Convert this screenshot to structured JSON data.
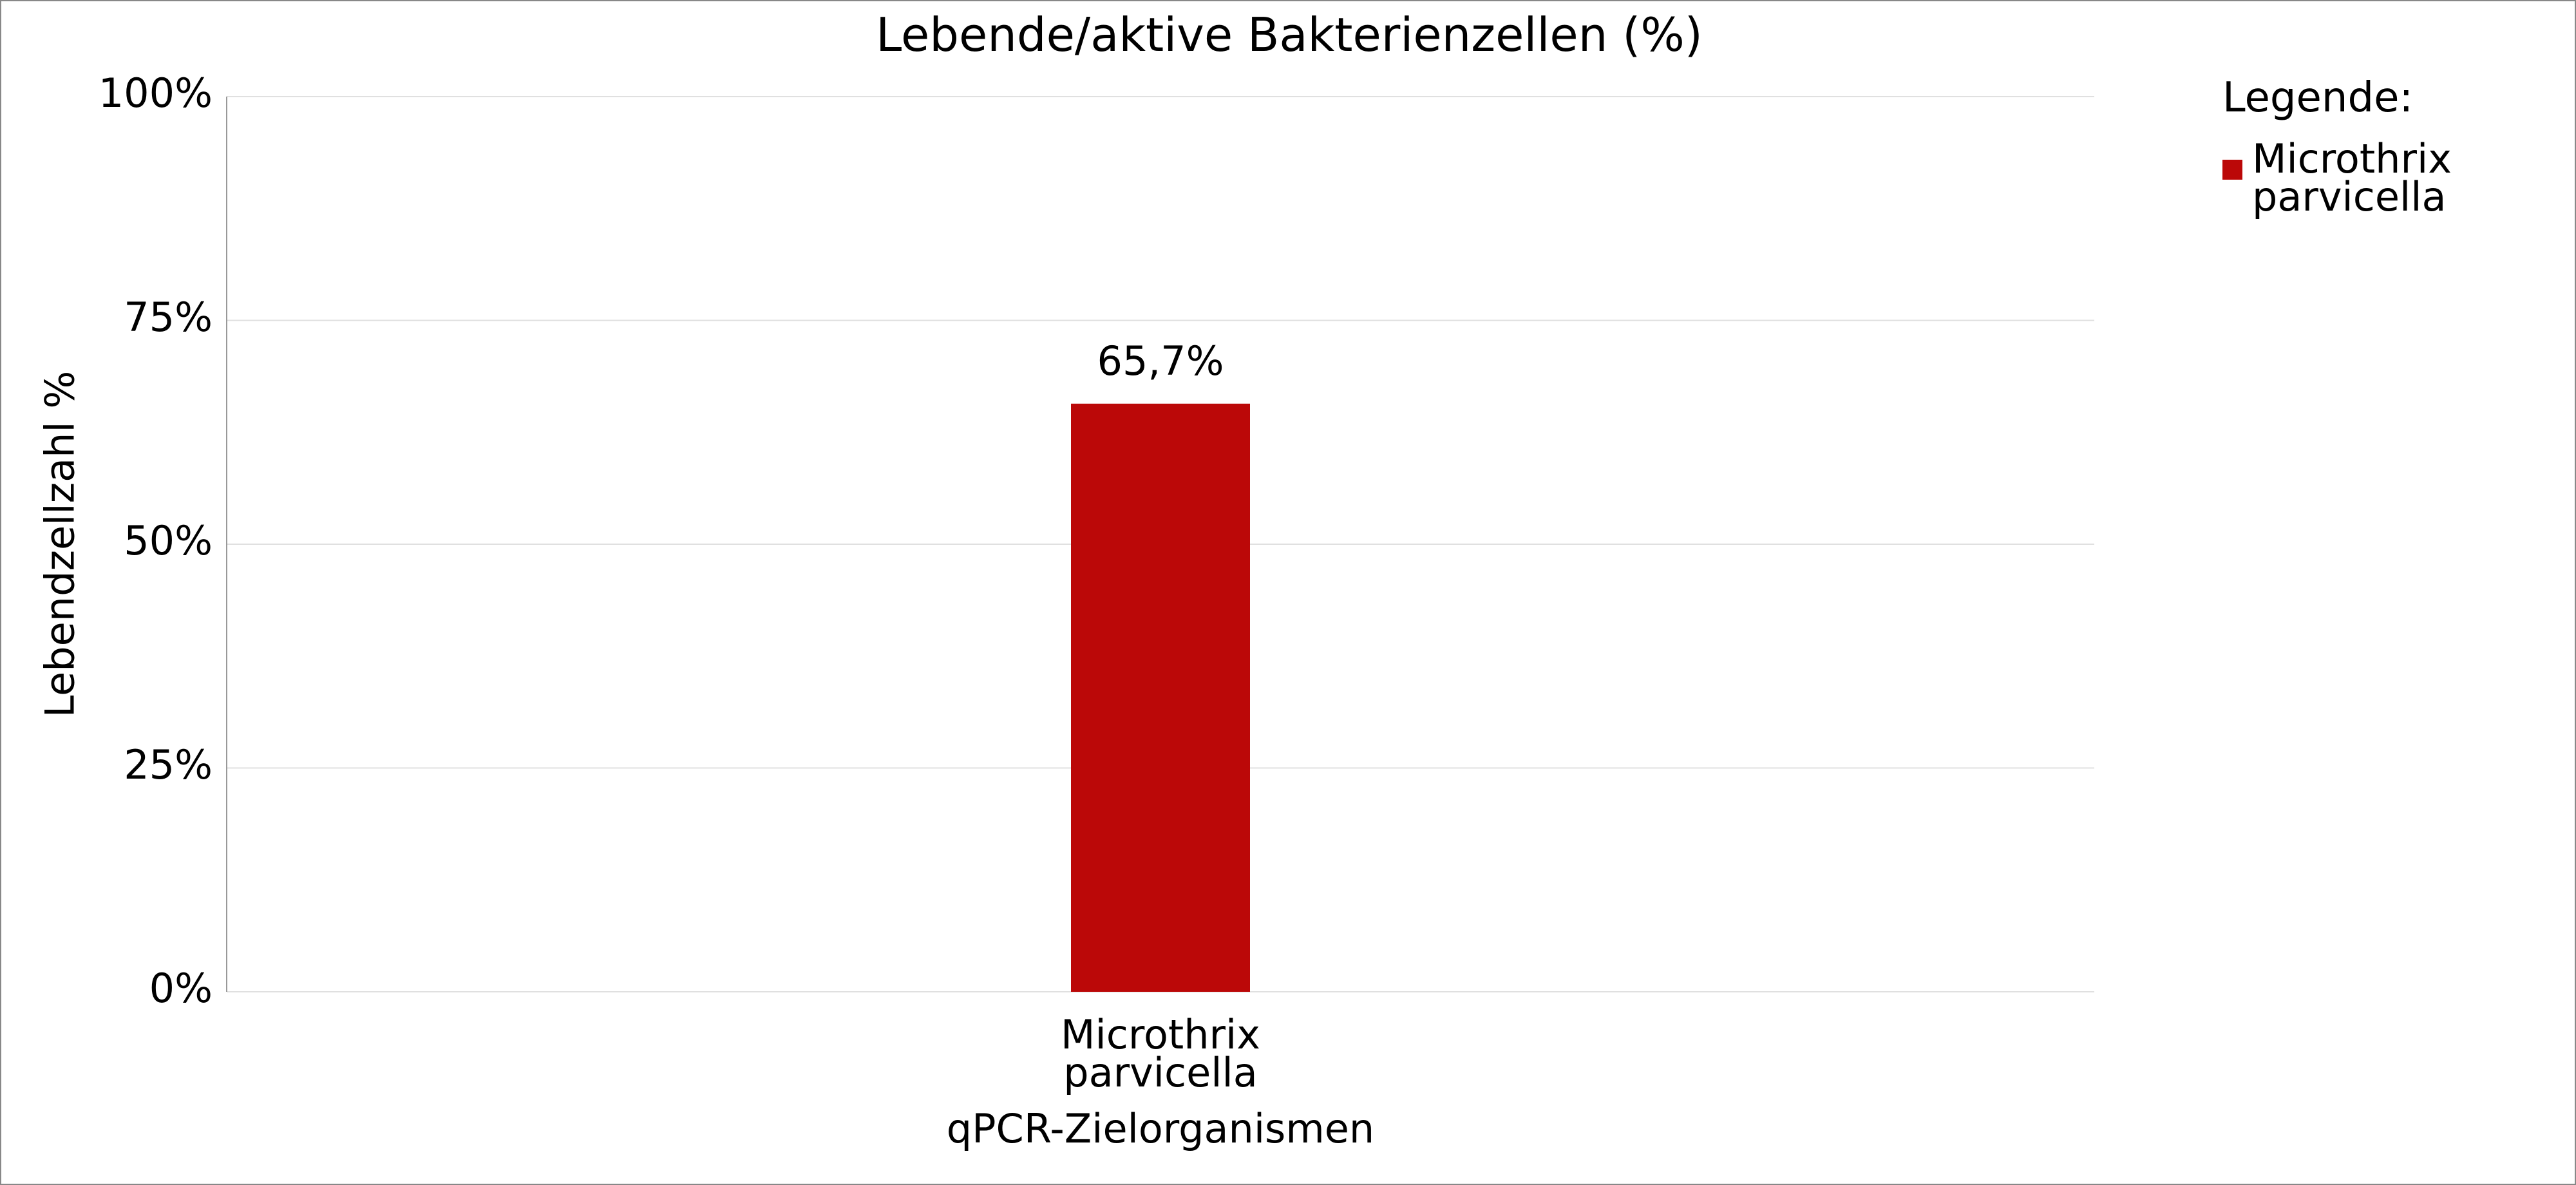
{
  "chart_data": {
    "type": "bar",
    "title": "Lebende/aktive Bakterienzellen (%)",
    "xlabel": "qPCR-Zielorganismen",
    "ylabel": "Lebendzellzahl %",
    "categories": [
      "Microthrix parvicella"
    ],
    "series": [
      {
        "name": "Microthrix parvicella",
        "color": "#bb0808",
        "values": [
          65.7
        ],
        "value_labels": [
          "65,7%"
        ]
      }
    ],
    "ylim": [
      0,
      100
    ],
    "yticks": [
      {
        "value": 0,
        "label": "0%"
      },
      {
        "value": 25,
        "label": "25%"
      },
      {
        "value": 50,
        "label": "50%"
      },
      {
        "value": 75,
        "label": "75%"
      },
      {
        "value": 100,
        "label": "100%"
      }
    ],
    "grid": true,
    "legend_title": "Legende:"
  }
}
